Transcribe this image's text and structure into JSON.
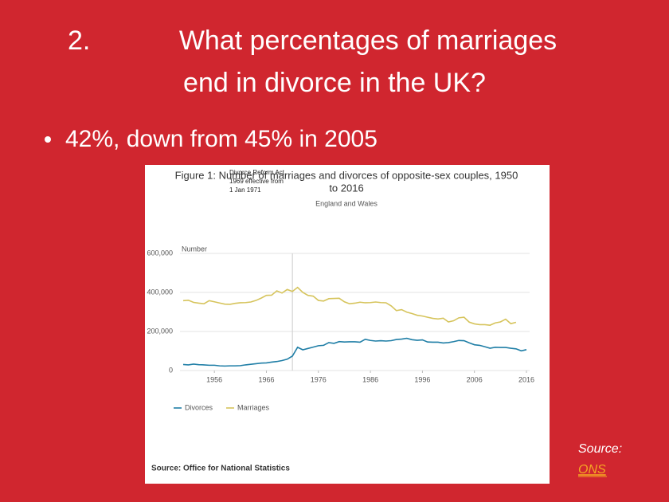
{
  "slide": {
    "number": "2.",
    "title": [
      "What percentages of marriages",
      "end in divorce in the UK?"
    ],
    "bullet": "42%, down from 45% in 2005",
    "source_label": "Source:",
    "source_link": "ONS"
  },
  "chart_data": {
    "type": "line",
    "title": [
      "Figure 1: Number of marriages and divorces of opposite-sex couples, 1950",
      "to 2016"
    ],
    "subtitle": "England and Wales",
    "y_label": "Number",
    "source": "Source: Office for National Statistics",
    "annotation": {
      "x": 1971,
      "label": [
        "Divorce Reform Act",
        "1969 effective from",
        "1 Jan 1971"
      ]
    },
    "x": [
      1950,
      1951,
      1952,
      1953,
      1954,
      1955,
      1956,
      1957,
      1958,
      1959,
      1960,
      1961,
      1962,
      1963,
      1964,
      1965,
      1966,
      1967,
      1968,
      1969,
      1970,
      1971,
      1972,
      1973,
      1974,
      1975,
      1976,
      1977,
      1978,
      1979,
      1980,
      1981,
      1982,
      1983,
      1984,
      1985,
      1986,
      1987,
      1988,
      1989,
      1990,
      1991,
      1992,
      1993,
      1994,
      1995,
      1996,
      1997,
      1998,
      1999,
      2000,
      2001,
      2002,
      2003,
      2004,
      2005,
      2006,
      2007,
      2008,
      2009,
      2010,
      2011,
      2012,
      2013,
      2014,
      2015,
      2016
    ],
    "series": [
      {
        "name": "Divorces",
        "color": "#1f7ea6",
        "values": [
          31000,
          29000,
          33000,
          30000,
          29000,
          27000,
          27000,
          24000,
          23000,
          24000,
          24000,
          25000,
          29000,
          32000,
          35000,
          38000,
          39000,
          43000,
          46000,
          51000,
          58000,
          74000,
          119000,
          106000,
          113000,
          120000,
          127000,
          129000,
          143000,
          139000,
          148000,
          146000,
          147000,
          147000,
          145000,
          160000,
          154000,
          151000,
          153000,
          151000,
          153000,
          159000,
          161000,
          165000,
          158000,
          155000,
          157000,
          146000,
          145000,
          145000,
          141000,
          143000,
          148000,
          154000,
          153000,
          142000,
          132000,
          129000,
          122000,
          114000,
          119000,
          118000,
          118000,
          114000,
          111000,
          101000,
          107000
        ]
      },
      {
        "name": "Marriages",
        "color": "#d6c45c",
        "values": [
          358000,
          360000,
          349000,
          345000,
          342000,
          358000,
          352000,
          346000,
          340000,
          339000,
          344000,
          347000,
          348000,
          351000,
          359000,
          371000,
          385000,
          386000,
          408000,
          397000,
          415000,
          405000,
          426000,
          400000,
          385000,
          381000,
          359000,
          356000,
          368000,
          369000,
          370000,
          352000,
          342000,
          345000,
          350000,
          347000,
          348000,
          351000,
          348000,
          347000,
          331000,
          307000,
          312000,
          299000,
          292000,
          283000,
          279000,
          273000,
          267000,
          264000,
          268000,
          249000,
          255000,
          270000,
          273000,
          248000,
          239000,
          235000,
          235000,
          232000,
          244000,
          249000,
          263000,
          240000,
          247000,
          null,
          null
        ]
      }
    ],
    "xlim": [
      1950,
      2016
    ],
    "xticks": [
      1956,
      1966,
      1976,
      1986,
      1996,
      2006,
      2016
    ],
    "ylim": [
      0,
      600000
    ],
    "yticks": [
      0,
      {
        "value": 200000,
        "label": "200,000"
      },
      {
        "value": 400000,
        "label": "400,000"
      },
      {
        "value": 600000,
        "label": "600,000"
      }
    ],
    "grid": true
  }
}
